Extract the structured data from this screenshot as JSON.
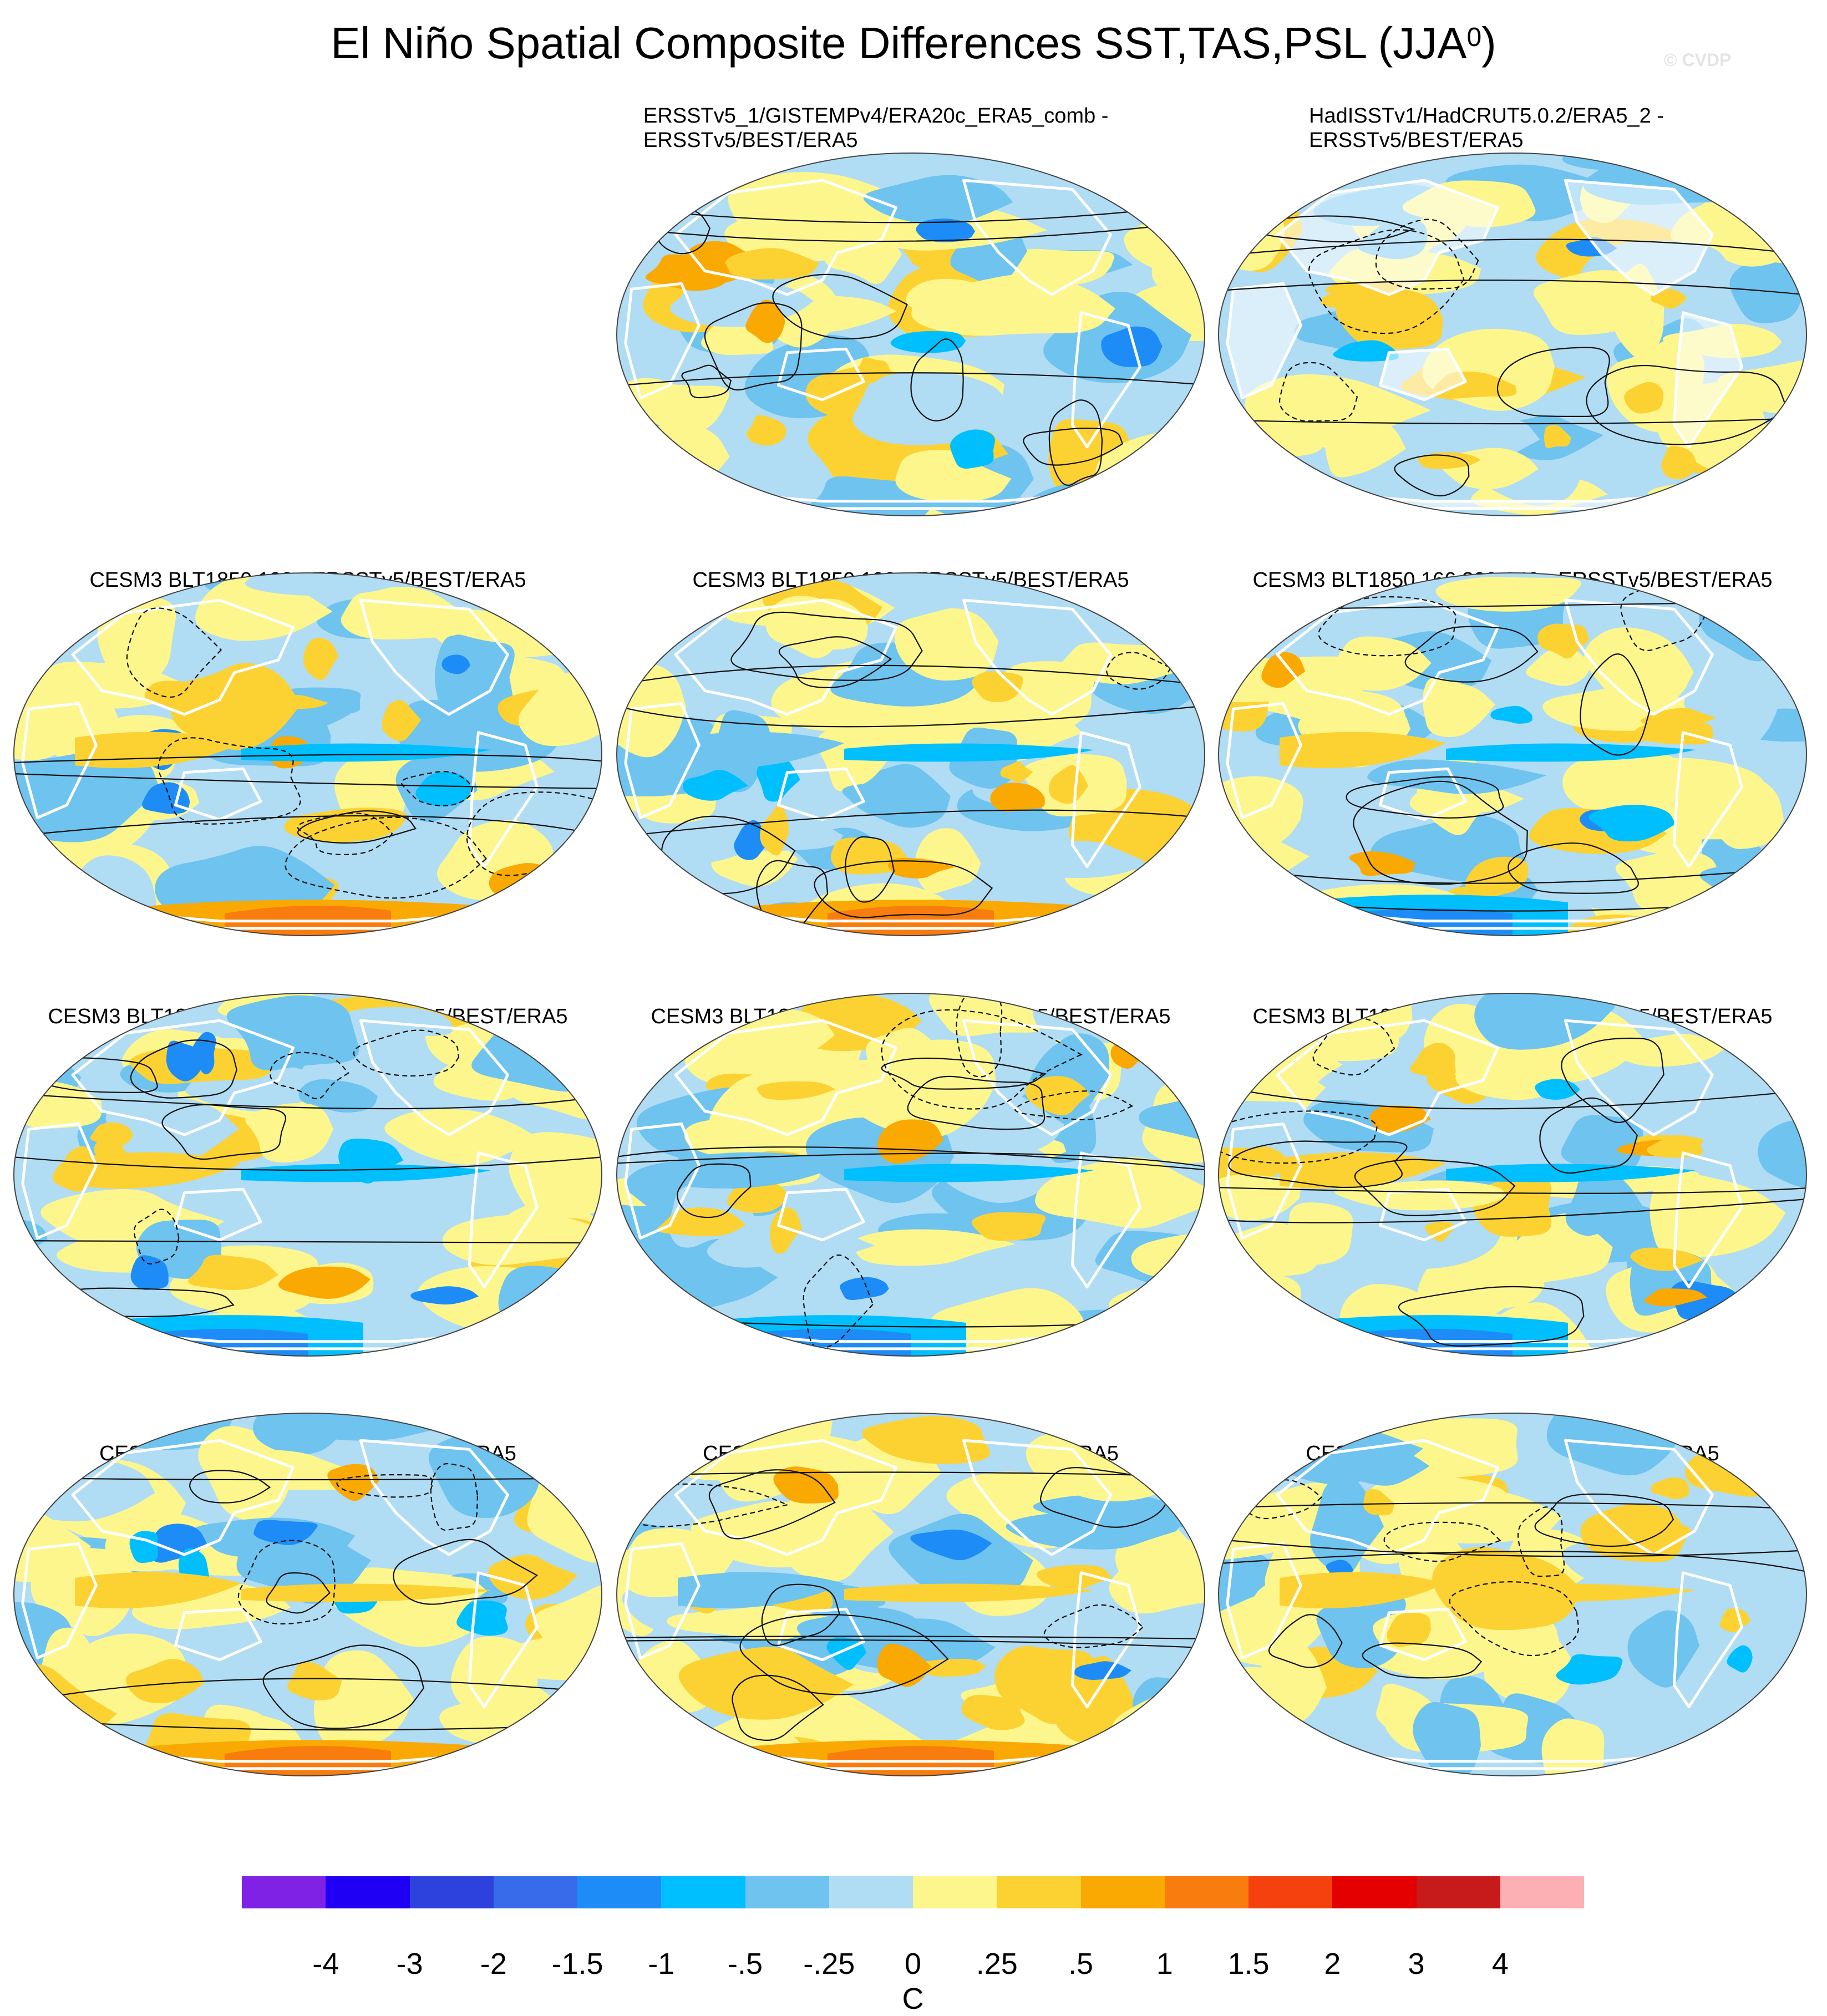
{
  "title": "El Niño Spatial Composite Differences SST,TAS,PSL (JJA",
  "title_superscript": "0",
  "title_suffix": ")",
  "credit": "© CVDP",
  "panels": [
    {
      "title_lines": [
        "ERSSTv5_1/GISTEMPv4/ERA20c_ERA5_comb -",
        "ERSSTv5/BEST/ERA5"
      ],
      "align": "left",
      "row": 0,
      "col": 1,
      "land_mask": false,
      "polar_anomaly": "none"
    },
    {
      "title_lines": [
        "HadISSTv1/HadCRUT5.0.2/ERA5_2 -",
        "ERSSTv5/BEST/ERA5"
      ],
      "align": "left",
      "row": 0,
      "col": 2,
      "land_mask": true,
      "polar_anomaly": "none"
    },
    {
      "title_lines": [
        "CESM3 BLT1850 193 - ERSSTv5/BEST/ERA5"
      ],
      "align": "center",
      "row": 1,
      "col": 0,
      "land_mask": false,
      "polar_anomaly": "warm"
    },
    {
      "title_lines": [
        "CESM3 BLT1850 192 - ERSSTv5/BEST/ERA5"
      ],
      "align": "center",
      "row": 1,
      "col": 1,
      "land_mask": false,
      "polar_anomaly": "warm"
    },
    {
      "title_lines": [
        "CESM3 BLT1850 166 300-349 - ERSSTv5/BEST/ERA5"
      ],
      "align": "center",
      "row": 1,
      "col": 2,
      "land_mask": false,
      "polar_anomaly": "cold"
    },
    {
      "title_lines": [
        "CESM3 BLT1850 166 250-299 - ERSSTv5/BEST/ERA5"
      ],
      "align": "center",
      "row": 2,
      "col": 0,
      "land_mask": false,
      "polar_anomaly": "cold"
    },
    {
      "title_lines": [
        "CESM3 BLT1850 166 200-249 - ERSSTv5/BEST/ERA5"
      ],
      "align": "center",
      "row": 2,
      "col": 1,
      "land_mask": false,
      "polar_anomaly": "cold"
    },
    {
      "title_lines": [
        "CESM3 BLT1850 166 150-199 - ERSSTv5/BEST/ERA5"
      ],
      "align": "center",
      "row": 2,
      "col": 2,
      "land_mask": false,
      "polar_anomaly": "cold"
    },
    {
      "title_lines": [
        "CESM2 piControl C - ERSSTv5/BEST/ERA5"
      ],
      "align": "center",
      "row": 3,
      "col": 0,
      "land_mask": false,
      "polar_anomaly": "warm"
    },
    {
      "title_lines": [
        "CESM2 piControl B - ERSSTv5/BEST/ERA5"
      ],
      "align": "center",
      "row": 3,
      "col": 1,
      "land_mask": false,
      "polar_anomaly": "warm"
    },
    {
      "title_lines": [
        "CESM2 piControl A - ERSSTv5/BEST/ERA5"
      ],
      "align": "center",
      "row": 3,
      "col": 2,
      "land_mask": false,
      "polar_anomaly": "none"
    }
  ],
  "legend": {
    "colors": [
      "#7f22e6",
      "#1f00f5",
      "#2d41dc",
      "#386bea",
      "#1e8cf6",
      "#00bfff",
      "#6ec3ef",
      "#b0dcf4",
      "#fdf68d",
      "#fcd233",
      "#f9a902",
      "#f87c0e",
      "#f5410d",
      "#e50000",
      "#c71a1a",
      "#fcb0b3"
    ],
    "labels": [
      "-4",
      "-3",
      "-2",
      "-1.5",
      "-1",
      "-.5",
      "-.25",
      "0",
      ".25",
      ".5",
      "1",
      "1.5",
      "2",
      "3",
      "4"
    ],
    "unit": "C"
  }
}
